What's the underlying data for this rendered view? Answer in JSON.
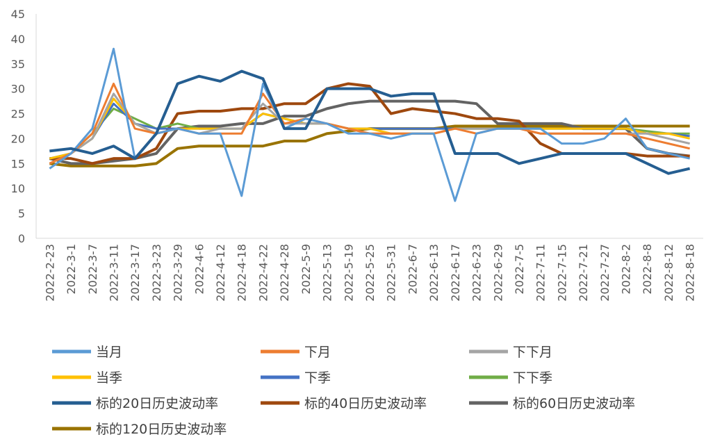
{
  "chart_data": {
    "type": "line",
    "categories": [
      "2022-2-23",
      "2022-3-1",
      "2022-3-7",
      "2022-3-11",
      "2022-3-17",
      "2022-3-23",
      "2022-3-29",
      "2022-4-6",
      "2022-4-12",
      "2022-4-18",
      "2022-4-22",
      "2022-4-28",
      "2022-5-9",
      "2022-5-13",
      "2022-5-19",
      "2022-5-25",
      "2022-5-31",
      "2022-6-7",
      "2022-6-13",
      "2022-6-17",
      "2022-6-23",
      "2022-6-29",
      "2022-7-5",
      "2022-7-11",
      "2022-7-15",
      "2022-7-21",
      "2022-7-27",
      "2022-8-2",
      "2022-8-8",
      "2022-8-12",
      "2022-8-18"
    ],
    "ylim": [
      0,
      45
    ],
    "yticks": [
      0,
      5,
      10,
      15,
      20,
      25,
      30,
      35,
      40,
      45
    ],
    "series": [
      {
        "name": "当月",
        "color": "#5B9BD5",
        "values": [
          14,
          17,
          22,
          38,
          16,
          21,
          22,
          21,
          21,
          8.5,
          31,
          22,
          24,
          23,
          21,
          21,
          20,
          21,
          21,
          7.5,
          21,
          22,
          22,
          22,
          19,
          19,
          20,
          24,
          18,
          17,
          16
        ]
      },
      {
        "name": "下月",
        "color": "#ED7D31",
        "values": [
          15,
          17,
          21,
          31,
          22,
          21,
          22,
          21,
          21,
          21,
          29,
          23,
          24,
          23,
          22,
          21,
          21,
          21,
          21,
          22,
          21,
          22,
          22,
          21,
          21,
          21,
          21,
          21,
          20,
          19,
          18
        ]
      },
      {
        "name": "下下月",
        "color": "#A5A5A5",
        "values": [
          15,
          17,
          20,
          29,
          23,
          21,
          22,
          21,
          22,
          22,
          27,
          23,
          23,
          23,
          22,
          21,
          21,
          21,
          21,
          22,
          22,
          22,
          22,
          21,
          21,
          21,
          21,
          21,
          21,
          20,
          19
        ]
      },
      {
        "name": "当季",
        "color": "#FFC000",
        "values": [
          16,
          17,
          20,
          28,
          23,
          21,
          22,
          22,
          22,
          22,
          25,
          24,
          23,
          23,
          22,
          22,
          21,
          21,
          21,
          22,
          22,
          22,
          22,
          22,
          22,
          22,
          22,
          22,
          21,
          21,
          20
        ]
      },
      {
        "name": "下季",
        "color": "#4472C4",
        "values": [
          16,
          17,
          20,
          27,
          23,
          22,
          22,
          22,
          22,
          22,
          25,
          24,
          23,
          23,
          22,
          22,
          22,
          22,
          22,
          22,
          22,
          22,
          22,
          22,
          22,
          22,
          22,
          22,
          21,
          21,
          20.5
        ]
      },
      {
        "name": "下下季",
        "color": "#70AD47",
        "values": [
          16,
          17,
          21,
          26,
          24,
          22,
          23,
          22,
          22,
          22,
          25,
          24,
          23,
          23,
          22,
          22,
          22,
          22,
          22,
          22,
          22,
          22,
          22,
          22,
          22,
          22,
          22,
          22,
          21.5,
          21,
          21
        ]
      },
      {
        "name": "标的20日历史波动率",
        "color": "#255E91",
        "values": [
          17.5,
          18,
          17,
          18.5,
          16,
          21,
          31,
          32.5,
          31.5,
          33.5,
          32,
          22,
          22,
          30,
          30,
          30,
          28.5,
          29,
          29,
          17,
          17,
          17,
          15,
          16,
          17,
          17,
          17,
          17,
          15,
          13,
          14
        ]
      },
      {
        "name": "标的40日历史波动率",
        "color": "#9E480E",
        "values": [
          16,
          16,
          15,
          16,
          16,
          18,
          25,
          25.5,
          25.5,
          26,
          26,
          27,
          27,
          30,
          31,
          30.5,
          25,
          26,
          25.5,
          25,
          24,
          24,
          23.5,
          19,
          17,
          17,
          17,
          17,
          16.5,
          16.5,
          16.5
        ]
      },
      {
        "name": "标的60日历史波动率",
        "color": "#636363",
        "values": [
          16,
          15,
          15,
          15.5,
          16,
          17,
          22,
          22.5,
          22.5,
          23,
          23,
          24.5,
          24.5,
          26,
          27,
          27.5,
          27.5,
          27.5,
          27.5,
          27.5,
          27,
          23,
          23,
          23,
          23,
          22,
          22,
          22,
          18,
          17,
          16.5
        ]
      },
      {
        "name": "标的120日历史波动率",
        "color": "#997300",
        "values": [
          15,
          14.5,
          14.5,
          14.5,
          14.5,
          15,
          18,
          18.5,
          18.5,
          18.5,
          18.5,
          19.5,
          19.5,
          21,
          21.5,
          22,
          22,
          22,
          22,
          22.5,
          22.5,
          22.5,
          22.5,
          22.5,
          22.5,
          22.5,
          22.5,
          22.5,
          22.5,
          22.5,
          22.5
        ]
      }
    ]
  }
}
